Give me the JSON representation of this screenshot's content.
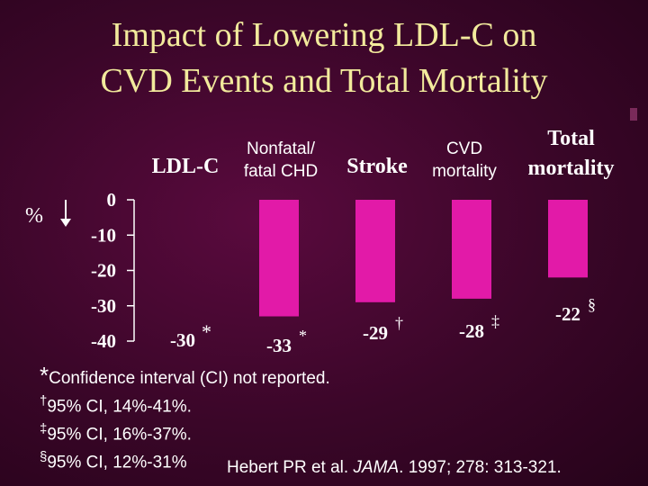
{
  "title": {
    "line1": "Impact of Lowering LDL-C on",
    "line2": "CVD Events and Total Mortality"
  },
  "axis_unit": "%",
  "colors": {
    "bar": "#e21aa8",
    "title": "#f2ea9c",
    "text": "#ffffff"
  },
  "chart_data": {
    "type": "bar",
    "title": "",
    "row_header": "LDL-C",
    "categories": [
      "Nonfatal/ fatal CHD",
      "Stroke",
      "CVD mortality",
      "Total mortality"
    ],
    "category_labels": {
      "nonfatal_line1": "Nonfatal/",
      "nonfatal_line2": "fatal CHD",
      "stroke": "Stroke",
      "cvd_line1": "CVD",
      "cvd_line2": "mortality",
      "total_line1": "Total",
      "total_line2": "mortality"
    },
    "bars": [
      {
        "value": -33,
        "label": "-33",
        "mark": "*"
      },
      {
        "value": -29,
        "label": "-29",
        "mark": "†"
      },
      {
        "value": -28,
        "label": "-28",
        "mark": "‡"
      },
      {
        "value": -22,
        "label": "-22",
        "mark": "§"
      }
    ],
    "ldl_value": {
      "value": -30,
      "label": "-30",
      "mark": "*"
    },
    "ylim": [
      -40,
      0
    ],
    "yticks": [
      0,
      -10,
      -20,
      -30,
      -40
    ],
    "ytick_labels": [
      "0",
      "-10",
      "-20",
      "-30",
      "-40"
    ],
    "xlabel": "",
    "ylabel": "%"
  },
  "footnotes": {
    "f1_mark": "*",
    "f1_text": "Confidence interval (CI) not reported.",
    "f2_mark": "†",
    "f2_text": "95% CI, 14%-41%.",
    "f3_mark": "‡",
    "f3_text": "95% CI, 16%-37%.",
    "f4_mark": "§",
    "f4_text": "95% CI, 12%-31%",
    "cite_prefix": "Hebert PR et al. ",
    "cite_journal": "JAMA",
    "cite_suffix": ". 1997; 278: 313-321."
  }
}
